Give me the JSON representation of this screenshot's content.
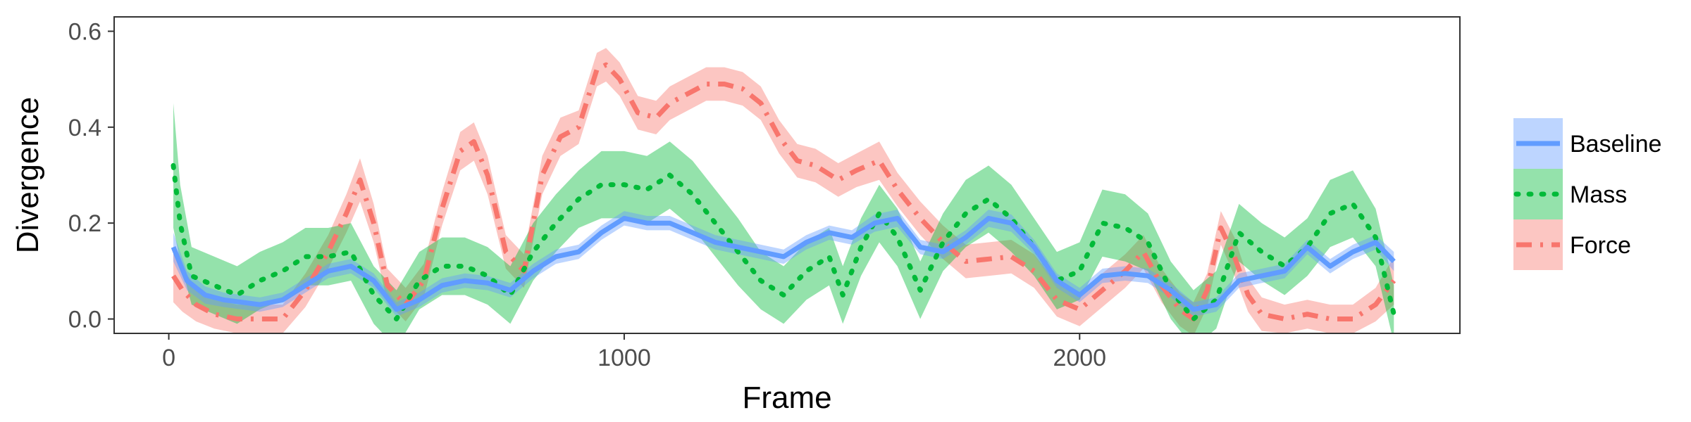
{
  "chart_data": {
    "type": "line",
    "title": "",
    "xlabel": "Frame",
    "ylabel": "Divergence",
    "xlim": [
      -120,
      2835
    ],
    "ylim": [
      -0.03,
      0.63
    ],
    "xticks": [
      0,
      1000,
      2000
    ],
    "yticks": [
      0.0,
      0.2,
      0.4,
      0.6
    ],
    "xtick_labels": [
      "0",
      "1000",
      "2000"
    ],
    "ytick_labels": [
      "0.0",
      "0.2",
      "0.4",
      "0.6"
    ],
    "grid": false,
    "legend_position": "right",
    "series": [
      {
        "name": "Force",
        "color": "#f8766d",
        "line_style": "dashdot",
        "x": [
          10,
          30,
          60,
          100,
          150,
          200,
          250,
          300,
          350,
          390,
          420,
          450,
          480,
          520,
          560,
          600,
          640,
          670,
          700,
          740,
          780,
          820,
          860,
          900,
          940,
          960,
          990,
          1030,
          1070,
          1100,
          1140,
          1180,
          1220,
          1260,
          1300,
          1340,
          1380,
          1420,
          1470,
          1510,
          1560,
          1600,
          1650,
          1700,
          1750,
          1800,
          1850,
          1900,
          1950,
          2000,
          2050,
          2100,
          2140,
          2180,
          2220,
          2250,
          2280,
          2310,
          2340,
          2370,
          2400,
          2450,
          2500,
          2550,
          2600,
          2650,
          2690
        ],
        "y": [
          0.09,
          0.06,
          0.03,
          0.01,
          0.0,
          0.0,
          0.0,
          0.06,
          0.14,
          0.22,
          0.29,
          0.2,
          0.07,
          0.03,
          0.08,
          0.23,
          0.35,
          0.37,
          0.3,
          0.14,
          0.1,
          0.3,
          0.38,
          0.4,
          0.52,
          0.53,
          0.5,
          0.43,
          0.42,
          0.45,
          0.47,
          0.49,
          0.49,
          0.48,
          0.45,
          0.38,
          0.33,
          0.32,
          0.29,
          0.31,
          0.33,
          0.27,
          0.21,
          0.16,
          0.12,
          0.125,
          0.13,
          0.1,
          0.04,
          0.02,
          0.06,
          0.1,
          0.14,
          0.07,
          0.02,
          0.0,
          0.06,
          0.19,
          0.13,
          0.05,
          0.01,
          0.0,
          0.01,
          0.0,
          0.0,
          0.03,
          0.08
        ],
        "band": [
          0.055,
          0.045,
          0.035,
          0.03,
          0.03,
          0.03,
          0.03,
          0.035,
          0.035,
          0.04,
          0.045,
          0.04,
          0.035,
          0.035,
          0.035,
          0.035,
          0.04,
          0.04,
          0.04,
          0.035,
          0.035,
          0.04,
          0.04,
          0.035,
          0.035,
          0.035,
          0.035,
          0.035,
          0.035,
          0.035,
          0.035,
          0.035,
          0.035,
          0.035,
          0.035,
          0.035,
          0.035,
          0.035,
          0.035,
          0.035,
          0.04,
          0.035,
          0.035,
          0.035,
          0.035,
          0.035,
          0.035,
          0.035,
          0.035,
          0.035,
          0.035,
          0.035,
          0.035,
          0.035,
          0.035,
          0.035,
          0.035,
          0.035,
          0.04,
          0.035,
          0.035,
          0.03,
          0.03,
          0.03,
          0.03,
          0.035,
          0.05
        ]
      },
      {
        "name": "Mass",
        "color": "#00ba38",
        "line_style": "dotted",
        "x": [
          10,
          25,
          50,
          100,
          150,
          200,
          250,
          300,
          350,
          400,
          450,
          500,
          550,
          600,
          650,
          700,
          750,
          800,
          850,
          900,
          950,
          1000,
          1050,
          1100,
          1150,
          1200,
          1250,
          1300,
          1350,
          1400,
          1450,
          1480,
          1520,
          1560,
          1600,
          1650,
          1700,
          1750,
          1800,
          1850,
          1900,
          1950,
          2000,
          2050,
          2100,
          2150,
          2200,
          2250,
          2300,
          2350,
          2400,
          2450,
          2500,
          2550,
          2600,
          2650,
          2690
        ],
        "y": [
          0.32,
          0.2,
          0.09,
          0.07,
          0.05,
          0.08,
          0.1,
          0.13,
          0.13,
          0.14,
          0.05,
          0.0,
          0.08,
          0.11,
          0.11,
          0.09,
          0.05,
          0.14,
          0.2,
          0.25,
          0.28,
          0.28,
          0.27,
          0.3,
          0.26,
          0.2,
          0.14,
          0.08,
          0.05,
          0.1,
          0.13,
          0.05,
          0.15,
          0.22,
          0.17,
          0.06,
          0.16,
          0.22,
          0.25,
          0.21,
          0.15,
          0.08,
          0.1,
          0.2,
          0.19,
          0.16,
          0.06,
          0.0,
          0.04,
          0.18,
          0.14,
          0.11,
          0.15,
          0.22,
          0.24,
          0.17,
          0.01
        ],
        "band": [
          0.13,
          0.08,
          0.06,
          0.06,
          0.06,
          0.06,
          0.06,
          0.06,
          0.06,
          0.06,
          0.06,
          0.06,
          0.06,
          0.06,
          0.06,
          0.06,
          0.06,
          0.06,
          0.06,
          0.06,
          0.07,
          0.07,
          0.07,
          0.07,
          0.07,
          0.07,
          0.07,
          0.06,
          0.06,
          0.06,
          0.06,
          0.06,
          0.06,
          0.06,
          0.06,
          0.06,
          0.06,
          0.07,
          0.07,
          0.07,
          0.06,
          0.06,
          0.06,
          0.07,
          0.07,
          0.06,
          0.06,
          0.06,
          0.06,
          0.06,
          0.06,
          0.06,
          0.06,
          0.07,
          0.07,
          0.06,
          0.06
        ]
      },
      {
        "name": "Baseline",
        "color": "#619cff",
        "line_style": "solid",
        "x": [
          10,
          40,
          80,
          120,
          160,
          200,
          250,
          300,
          350,
          400,
          450,
          500,
          550,
          600,
          650,
          700,
          750,
          800,
          850,
          900,
          950,
          1000,
          1050,
          1100,
          1150,
          1200,
          1250,
          1300,
          1350,
          1400,
          1450,
          1500,
          1550,
          1600,
          1650,
          1700,
          1750,
          1800,
          1850,
          1900,
          1950,
          2000,
          2050,
          2100,
          2150,
          2200,
          2250,
          2300,
          2350,
          2400,
          2450,
          2500,
          2550,
          2600,
          2650,
          2690
        ],
        "y": [
          0.15,
          0.08,
          0.05,
          0.04,
          0.035,
          0.03,
          0.04,
          0.07,
          0.1,
          0.11,
          0.08,
          0.02,
          0.04,
          0.07,
          0.08,
          0.075,
          0.06,
          0.1,
          0.13,
          0.14,
          0.18,
          0.21,
          0.2,
          0.2,
          0.18,
          0.16,
          0.15,
          0.14,
          0.13,
          0.16,
          0.18,
          0.17,
          0.2,
          0.21,
          0.15,
          0.14,
          0.17,
          0.21,
          0.2,
          0.15,
          0.08,
          0.05,
          0.09,
          0.095,
          0.09,
          0.06,
          0.02,
          0.03,
          0.08,
          0.09,
          0.1,
          0.15,
          0.11,
          0.14,
          0.16,
          0.12
        ],
        "band": [
          0.03,
          0.02,
          0.018,
          0.015,
          0.015,
          0.015,
          0.015,
          0.015,
          0.015,
          0.015,
          0.015,
          0.015,
          0.015,
          0.015,
          0.015,
          0.015,
          0.015,
          0.015,
          0.015,
          0.015,
          0.015,
          0.015,
          0.015,
          0.015,
          0.015,
          0.015,
          0.015,
          0.015,
          0.015,
          0.015,
          0.015,
          0.015,
          0.018,
          0.018,
          0.015,
          0.015,
          0.015,
          0.018,
          0.018,
          0.015,
          0.015,
          0.015,
          0.015,
          0.015,
          0.015,
          0.015,
          0.015,
          0.015,
          0.015,
          0.015,
          0.015,
          0.015,
          0.015,
          0.015,
          0.015,
          0.02
        ]
      }
    ],
    "legend_order": [
      "Baseline",
      "Mass",
      "Force"
    ]
  }
}
